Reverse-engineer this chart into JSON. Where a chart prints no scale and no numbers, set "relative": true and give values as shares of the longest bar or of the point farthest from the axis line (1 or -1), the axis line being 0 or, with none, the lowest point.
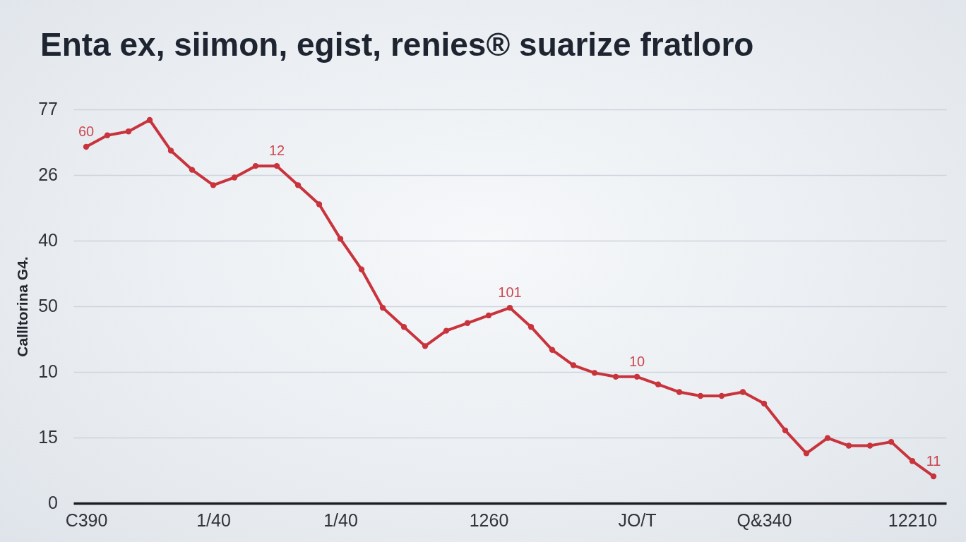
{
  "chart_data": {
    "type": "line",
    "title": "Enta ex, siimon, egist, renies® suarize fratloro",
    "ylabel": "Callltorina G4.",
    "categories": [
      "C390",
      null,
      null,
      null,
      null,
      null,
      "1/40",
      null,
      null,
      null,
      null,
      null,
      "1/40",
      null,
      null,
      null,
      null,
      null,
      null,
      "1260",
      null,
      null,
      null,
      null,
      null,
      null,
      "JO/T",
      null,
      null,
      null,
      null,
      null,
      "Q&340",
      null,
      null,
      null,
      null,
      null,
      null,
      "12210",
      null
    ],
    "relative": true,
    "series": [
      {
        "color": "#c8333c",
        "values": [
          0.93,
          0.96,
          0.97,
          1,
          0.92,
          0.87,
          0.83,
          0.85,
          0.88,
          0.88,
          0.83,
          0.78,
          0.69,
          0.61,
          0.51,
          0.46,
          0.41,
          0.45,
          0.47,
          0.49,
          0.51,
          0.46,
          0.4,
          0.36,
          0.34,
          0.33,
          0.33,
          0.31,
          0.29,
          0.28,
          0.28,
          0.29,
          0.26,
          0.19,
          0.13,
          0.17,
          0.15,
          0.15,
          0.16,
          0.11,
          0.07
        ]
      }
    ],
    "annotations": [
      {
        "text": "60",
        "x": "C390",
        "y": 0.93
      },
      {
        "text": "12",
        "y": 0.88
      },
      {
        "text": "101",
        "y": 0.51
      },
      {
        "text": "10",
        "x": "JO/T",
        "y": 0.33
      },
      {
        "text": "11",
        "y": 0.07
      },
      "77",
      "26",
      "40",
      "50",
      "10",
      "15",
      "0"
    ],
    "grid": "y",
    "marker": "circle"
  }
}
